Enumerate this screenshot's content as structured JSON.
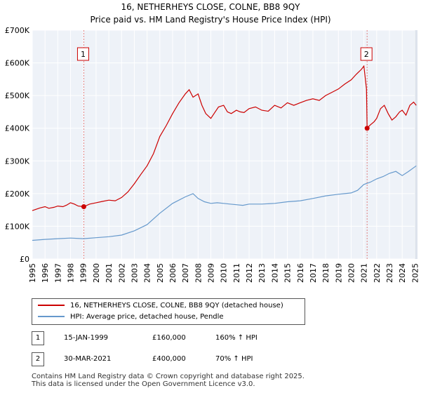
{
  "chart_data": {
    "type": "line",
    "title": "16, NETHERHEYS CLOSE, COLNE, BB8 9QY",
    "subtitle": "Price paid vs. HM Land Registry's House Price Index (HPI)",
    "xlabel": "",
    "ylabel": "",
    "xlim": [
      1995.0,
      2025.2
    ],
    "ylim": [
      0,
      700000
    ],
    "y_ticks": [
      0,
      100000,
      200000,
      300000,
      400000,
      500000,
      600000,
      700000
    ],
    "y_tick_labels": [
      "£0",
      "£100K",
      "£200K",
      "£300K",
      "£400K",
      "£500K",
      "£600K",
      "£700K"
    ],
    "x_ticks": [
      1995,
      1996,
      1997,
      1998,
      1999,
      2000,
      2001,
      2002,
      2003,
      2004,
      2005,
      2006,
      2007,
      2008,
      2009,
      2010,
      2011,
      2012,
      2013,
      2014,
      2015,
      2016,
      2017,
      2018,
      2019,
      2020,
      2021,
      2022,
      2023,
      2024,
      2025
    ],
    "x_tick_labels": [
      "1995",
      "1996",
      "1997",
      "1998",
      "1999",
      "2000",
      "2001",
      "2002",
      "2003",
      "2004",
      "2005",
      "2006",
      "2007",
      "2008",
      "2009",
      "2010",
      "2011",
      "2012",
      "2013",
      "2014",
      "2015",
      "2016",
      "2017",
      "2018",
      "2019",
      "2020",
      "2021",
      "2022",
      "2023",
      "2024",
      "2025"
    ],
    "grid": true,
    "series": [
      {
        "name": "16, NETHERHEYS CLOSE, COLNE, BB8 9QY (detached house)",
        "color": "#cc0000",
        "x": [
          1995.0,
          1995.3,
          1995.6,
          1996.0,
          1996.3,
          1996.7,
          1997.0,
          1997.4,
          1997.7,
          1998.0,
          1998.3,
          1998.6,
          1999.04,
          1999.5,
          2000.0,
          2000.5,
          2001.0,
          2001.5,
          2002.0,
          2002.5,
          2003.0,
          2003.5,
          2004.0,
          2004.5,
          2005.0,
          2005.5,
          2006.0,
          2006.5,
          2007.0,
          2007.3,
          2007.6,
          2008.0,
          2008.3,
          2008.6,
          2009.0,
          2009.3,
          2009.6,
          2010.0,
          2010.3,
          2010.6,
          2011.0,
          2011.3,
          2011.6,
          2012.0,
          2012.5,
          2013.0,
          2013.5,
          2014.0,
          2014.5,
          2015.0,
          2015.5,
          2016.0,
          2016.5,
          2017.0,
          2017.5,
          2018.0,
          2018.5,
          2019.0,
          2019.5,
          2020.0,
          2020.4,
          2020.8,
          2021.0,
          2021.2,
          2021.25,
          2021.5,
          2021.8,
          2022.0,
          2022.3,
          2022.6,
          2022.9,
          2023.2,
          2023.5,
          2023.8,
          2024.0,
          2024.3,
          2024.6,
          2024.9,
          2025.1
        ],
        "values": [
          148000,
          152000,
          156000,
          160000,
          155000,
          158000,
          162000,
          160000,
          165000,
          172000,
          168000,
          162000,
          160000,
          168000,
          172000,
          176000,
          180000,
          178000,
          188000,
          205000,
          230000,
          258000,
          285000,
          322000,
          375000,
          408000,
          445000,
          478000,
          505000,
          518000,
          495000,
          505000,
          470000,
          445000,
          430000,
          448000,
          465000,
          470000,
          450000,
          445000,
          455000,
          450000,
          448000,
          460000,
          465000,
          455000,
          452000,
          470000,
          462000,
          478000,
          470000,
          478000,
          485000,
          490000,
          485000,
          500000,
          510000,
          520000,
          535000,
          548000,
          565000,
          580000,
          590000,
          520000,
          400000,
          410000,
          420000,
          430000,
          460000,
          470000,
          445000,
          425000,
          435000,
          450000,
          455000,
          440000,
          470000,
          480000,
          470000
        ]
      },
      {
        "name": "HPI: Average price, detached house, Pendle",
        "color": "#6699cc",
        "x": [
          1995.0,
          1996.0,
          1997.0,
          1998.0,
          1999.0,
          2000.0,
          2001.0,
          2002.0,
          2003.0,
          2004.0,
          2005.0,
          2006.0,
          2007.0,
          2007.6,
          2008.0,
          2008.5,
          2009.0,
          2009.5,
          2010.0,
          2010.5,
          2011.0,
          2011.5,
          2012.0,
          2013.0,
          2014.0,
          2015.0,
          2016.0,
          2017.0,
          2018.0,
          2019.0,
          2020.0,
          2020.5,
          2021.0,
          2021.5,
          2022.0,
          2022.5,
          2023.0,
          2023.5,
          2024.0,
          2024.5,
          2025.1
        ],
        "values": [
          57000,
          60000,
          62000,
          64000,
          62000,
          65000,
          68000,
          73000,
          86000,
          105000,
          140000,
          170000,
          190000,
          200000,
          185000,
          175000,
          170000,
          172000,
          170000,
          168000,
          166000,
          164000,
          168000,
          168000,
          170000,
          175000,
          178000,
          185000,
          193000,
          198000,
          202000,
          210000,
          228000,
          235000,
          245000,
          252000,
          262000,
          268000,
          255000,
          268000,
          285000
        ]
      }
    ],
    "sales": [
      {
        "label": "1",
        "x": 1999.04,
        "value": 160000
      },
      {
        "label": "2",
        "x": 2021.25,
        "value": 400000
      }
    ],
    "legend": [
      {
        "label": "16, NETHERHEYS CLOSE, COLNE, BB8 9QY (detached house)",
        "color": "#cc0000"
      },
      {
        "label": "HPI: Average price, detached house, Pendle",
        "color": "#6699cc"
      }
    ]
  },
  "transactions": [
    {
      "num": "1",
      "date": "15-JAN-1999",
      "price": "£160,000",
      "hpi": "160% ↑ HPI"
    },
    {
      "num": "2",
      "date": "30-MAR-2021",
      "price": "£400,000",
      "hpi": "70% ↑ HPI"
    }
  ],
  "footer": {
    "line1": "Contains HM Land Registry data © Crown copyright and database right 2025.",
    "line2": "This data is licensed under the Open Government Licence v3.0."
  }
}
